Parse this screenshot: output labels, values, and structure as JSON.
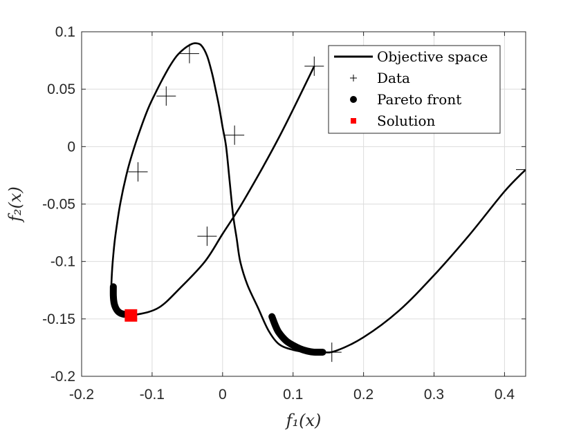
{
  "chart_data": {
    "type": "line",
    "xlabel": "f₁(x)",
    "ylabel": "f₂(x)",
    "xlim": [
      -0.2,
      0.43
    ],
    "ylim": [
      -0.2,
      0.1
    ],
    "xticks": [
      -0.2,
      -0.1,
      0,
      0.1,
      0.2,
      0.3,
      0.4
    ],
    "xtick_labels": [
      "-0.2",
      "-0.1",
      "0",
      "0.1",
      "0.2",
      "0.3",
      "0.4"
    ],
    "yticks": [
      -0.2,
      -0.15,
      -0.1,
      -0.05,
      0,
      0.05,
      0.1
    ],
    "ytick_labels": [
      "-0.2",
      "-0.15",
      "-0.1",
      "-0.05",
      "0",
      "0.05",
      "0.1"
    ],
    "grid": true,
    "legend_position": "top-right",
    "legend": [
      "Objective space",
      "Data",
      "Pareto front",
      "Solution"
    ],
    "series": [
      {
        "name": "Objective space",
        "style": "line",
        "color": "#000000",
        "x": [
          0.13,
          0.08,
          0.03,
          0.0,
          -0.025,
          -0.06,
          -0.09,
          -0.12,
          -0.135,
          -0.15,
          -0.157,
          -0.158,
          -0.157,
          -0.155,
          -0.152,
          -0.145,
          -0.135,
          -0.125,
          -0.115,
          -0.105,
          -0.095,
          -0.085,
          -0.075,
          -0.065,
          -0.055,
          -0.045,
          -0.038,
          -0.03,
          -0.022,
          -0.015,
          -0.01,
          -0.005,
          0.0,
          0.005,
          0.01,
          0.015,
          0.02,
          0.025,
          0.035,
          0.05,
          0.065,
          0.08,
          0.1,
          0.12,
          0.14,
          0.16,
          0.2,
          0.25,
          0.3,
          0.35,
          0.4,
          0.43
        ],
        "y": [
          0.07,
          0.008,
          -0.047,
          -0.076,
          -0.1,
          -0.123,
          -0.14,
          -0.146,
          -0.145,
          -0.142,
          -0.135,
          -0.127,
          -0.11,
          -0.094,
          -0.077,
          -0.049,
          -0.021,
          0.0,
          0.018,
          0.034,
          0.047,
          0.059,
          0.07,
          0.079,
          0.085,
          0.089,
          0.09,
          0.088,
          0.079,
          0.064,
          0.05,
          0.035,
          0.017,
          0.0,
          -0.03,
          -0.06,
          -0.08,
          -0.1,
          -0.12,
          -0.14,
          -0.16,
          -0.172,
          -0.177,
          -0.179,
          -0.179,
          -0.178,
          -0.166,
          -0.143,
          -0.112,
          -0.077,
          -0.039,
          -0.02
        ]
      },
      {
        "name": "Data",
        "style": "plus",
        "color": "#000000",
        "x": [
          0.13,
          0.017,
          -0.022,
          -0.047,
          -0.08,
          -0.12,
          0.155,
          0.43
        ],
        "y": [
          0.07,
          0.01,
          -0.078,
          0.081,
          0.044,
          -0.022,
          -0.179,
          -0.02
        ]
      },
      {
        "name": "Pareto front",
        "style": "thick",
        "color": "#000000",
        "segments": [
          {
            "x": [
              -0.155,
              -0.155,
              -0.154,
              -0.152,
              -0.149,
              -0.145,
              -0.14
            ],
            "y": [
              -0.122,
              -0.13,
              -0.136,
              -0.14,
              -0.143,
              -0.145,
              -0.146
            ]
          },
          {
            "x": [
              0.07,
              0.075,
              0.08,
              0.09,
              0.1,
              0.11,
              0.12,
              0.13,
              0.142
            ],
            "y": [
              -0.148,
              -0.156,
              -0.162,
              -0.169,
              -0.173,
              -0.176,
              -0.178,
              -0.179,
              -0.179
            ]
          }
        ]
      },
      {
        "name": "Solution",
        "style": "square",
        "color": "#ff0000",
        "x": [
          -0.13
        ],
        "y": [
          -0.147
        ]
      }
    ]
  }
}
